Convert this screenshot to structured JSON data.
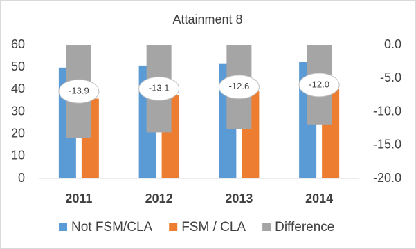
{
  "chart_data": {
    "type": "bar",
    "title": "Attainment 8",
    "categories": [
      "2011",
      "2012",
      "2013",
      "2014"
    ],
    "series": [
      {
        "name": "Not FSM/CLA",
        "color": "#5b9bd5",
        "values": [
          49.8,
          50.7,
          51.7,
          52.3
        ]
      },
      {
        "name": "FSM / CLA",
        "color": "#ed7d31",
        "values": [
          35.9,
          37.6,
          39.1,
          40.3
        ]
      },
      {
        "name": "Difference",
        "color": "#a5a5a5",
        "axis": "y2",
        "values": [
          -13.9,
          -13.1,
          -12.6,
          -12.0
        ],
        "value_labels": [
          "-13.9",
          "-13.1",
          "-12.6",
          "-12.0"
        ]
      }
    ],
    "ylim": [
      0,
      60
    ],
    "yticks": [
      0,
      10,
      20,
      30,
      40,
      50,
      60
    ],
    "y2lim": [
      -20,
      0
    ],
    "y2ticks": [
      {
        "value": 0,
        "label": "0.0"
      },
      {
        "value": -5,
        "label": "-5.0"
      },
      {
        "value": -10,
        "label": "-10.0"
      },
      {
        "value": -15,
        "label": "-15.0"
      },
      {
        "value": -20,
        "label": "-20.0"
      }
    ],
    "legend": "bottom"
  }
}
